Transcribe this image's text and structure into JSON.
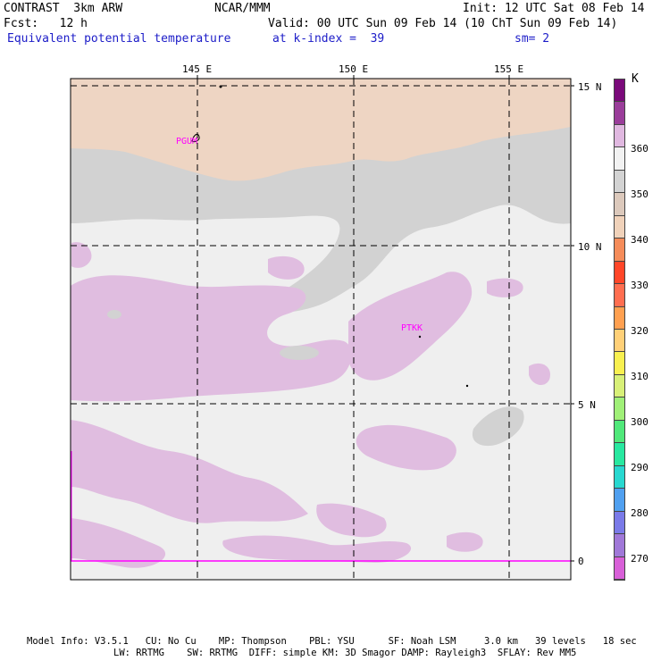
{
  "header": {
    "model": "CONTRAST  3km ARW",
    "center": "NCAR/MMM",
    "init": "Init: 12 UTC Sat 08 Feb 14",
    "fcst": "Fcst:   12 h",
    "valid": "Valid: 00 UTC Sun 09 Feb 14 (10 ChT Sun 09 Feb 14)",
    "field": "Equivalent potential temperature",
    "level": "at k-index =  39",
    "smoothing": "sm= 2"
  },
  "map": {
    "lon_labels": [
      "145 E",
      "150 E",
      "155 E"
    ],
    "lat_labels": [
      "15 N",
      "10 N",
      "5 N",
      "0"
    ],
    "stations": [
      "PGUM",
      "PTKK"
    ]
  },
  "colorbar": {
    "unit": "K",
    "labels": [
      "360",
      "350",
      "340",
      "330",
      "320",
      "310",
      "300",
      "290",
      "280",
      "270"
    ],
    "colors": [
      "#7a0a7a",
      "#9a3d9a",
      "#e0b8e0",
      "#f2f2f2",
      "#d3d3d3",
      "#dcc9bc",
      "#f0d2ba",
      "#f58c5a",
      "#ff4628",
      "#ff6e50",
      "#ffa050",
      "#ffd078",
      "#f8f050",
      "#d8f078",
      "#a0f078",
      "#50e87a",
      "#28e8a0",
      "#28d8d0",
      "#50a0f0",
      "#7a7ae8",
      "#a078d8",
      "#d860d8"
    ]
  },
  "footer": {
    "line1": "Model Info: V3.5.1   CU: No Cu    MP: Thompson    PBL: YSU      SF: Noah LSM     3.0 km   39 levels   18 sec",
    "line2": "LW: RRTMG    SW: RRTMG  DIFF: simple KM: 3D Smagor DAMP: Rayleigh3  SFLAY: Rev MM5"
  }
}
